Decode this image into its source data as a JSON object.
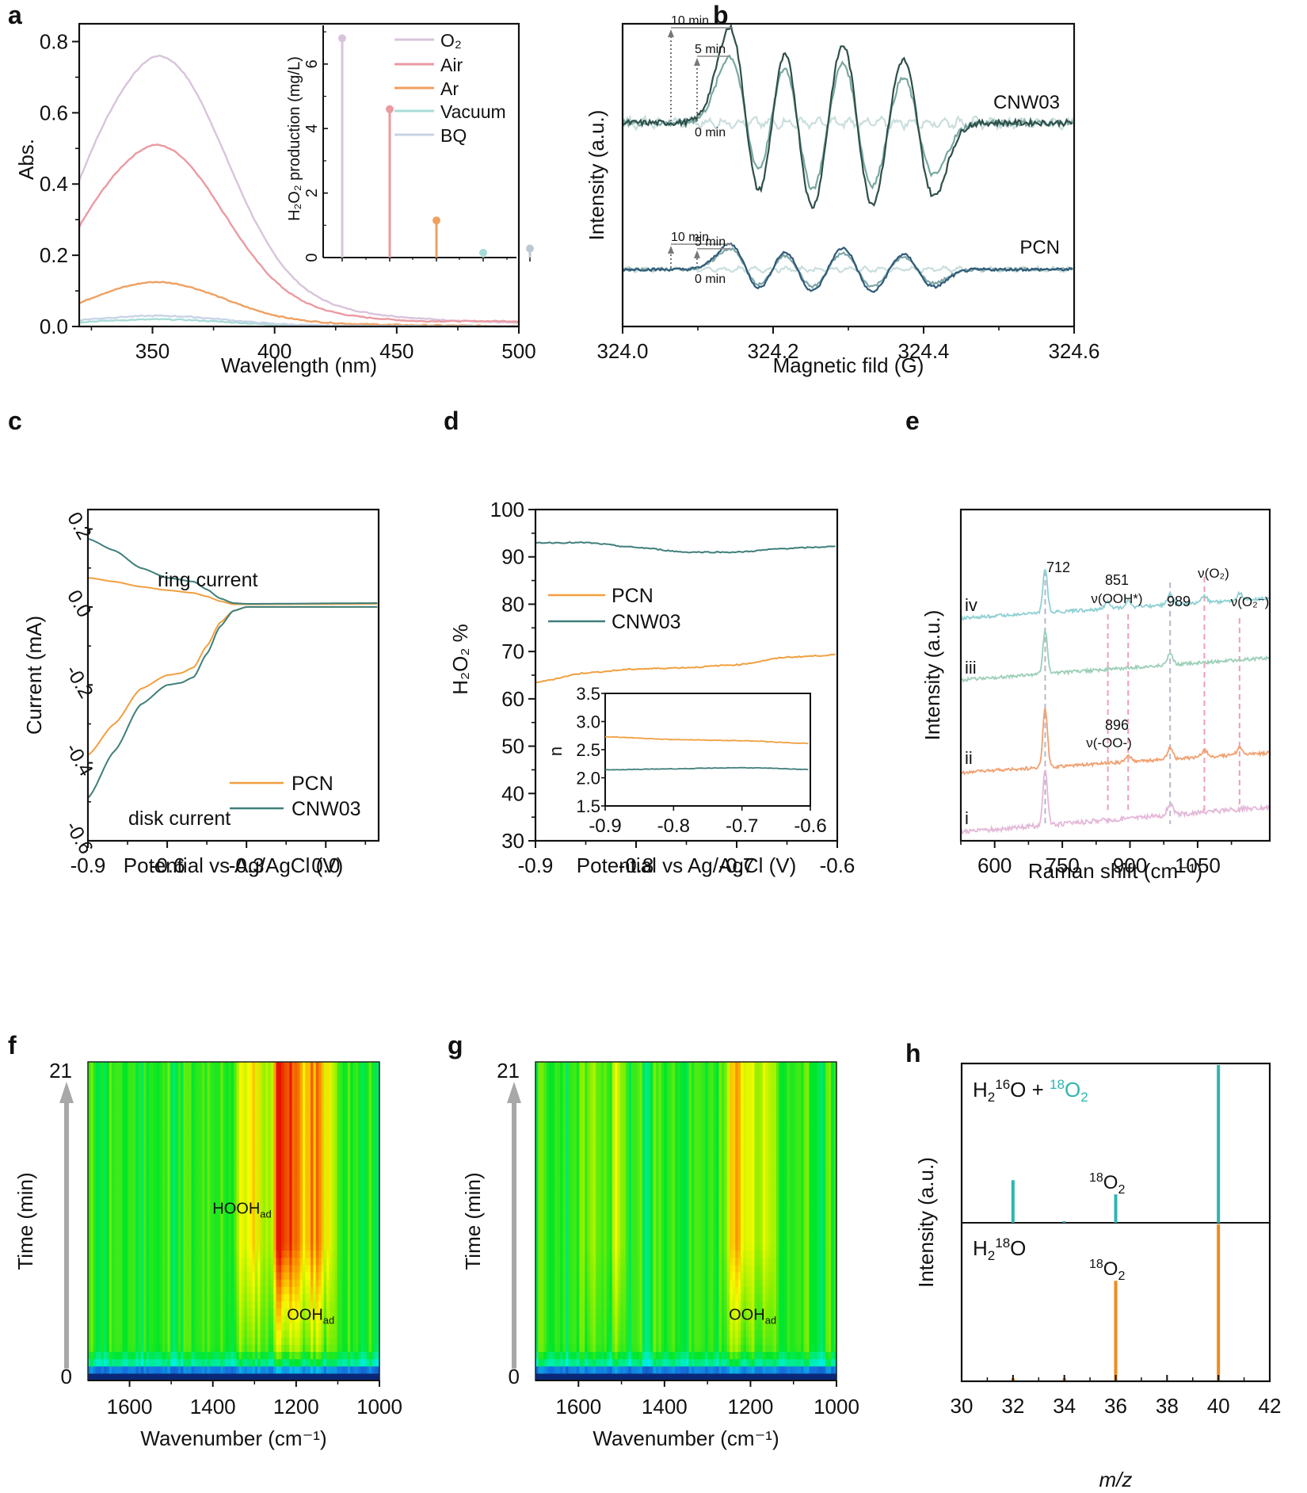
{
  "figure": {
    "panel_labels": [
      "a",
      "b",
      "c",
      "d",
      "e",
      "f",
      "g",
      "h"
    ]
  },
  "chart_data": [
    {
      "panel": "a",
      "type": "line",
      "xlabel": "Wavelength (nm)",
      "ylabel": "Abs.",
      "xlim": [
        320,
        500
      ],
      "ylim": [
        0.0,
        0.85
      ],
      "xticks": [
        "350",
        "400",
        "450",
        "500"
      ],
      "xtick_values": [
        350,
        400,
        450,
        500
      ],
      "yticks": [
        "0.0",
        "0.2",
        "0.4",
        "0.6",
        "0.8"
      ],
      "ytick_values": [
        0,
        0.2,
        0.4,
        0.6,
        0.8
      ],
      "series": [
        {
          "name": "O2",
          "color": "#d9c3dc",
          "baseline_at_320": 0.41,
          "peak_x": 352,
          "peak_y": 0.76,
          "tail_at_500": 0.01
        },
        {
          "name": "Air",
          "color": "#eb9aa2",
          "baseline_at_320": 0.28,
          "peak_x": 351,
          "peak_y": 0.51,
          "tail_at_500": 0.015
        },
        {
          "name": "Ar",
          "color": "#f0a060",
          "baseline_at_320": 0.065,
          "peak_x": 351,
          "peak_y": 0.125,
          "tail_at_500": 0.002
        },
        {
          "name": "Vacuum",
          "color": "#a8dcd8",
          "baseline_at_320": 0.012,
          "peak_x": 352,
          "peak_y": 0.02,
          "tail_at_500": 0.0
        },
        {
          "name": "BQ",
          "color": "#c7d4e6",
          "baseline_at_320": 0.018,
          "peak_x": 352,
          "peak_y": 0.03,
          "tail_at_500": 0.0
        }
      ],
      "legend": {
        "placement": "top-right",
        "entries": [
          "O₂",
          "Air",
          "Ar",
          "Vacuum",
          "BQ"
        ]
      },
      "inset": {
        "type": "stem",
        "ylabel": "H₂O₂ production (mg/L)",
        "ylim": [
          0,
          7.2
        ],
        "yticks": [
          "0",
          "2",
          "4",
          "6"
        ],
        "ytick_values": [
          0,
          2,
          4,
          6
        ],
        "categories": [
          "O2",
          "Air",
          "Ar",
          "Vacuum",
          "BQ"
        ],
        "values": [
          6.8,
          4.6,
          1.15,
          0.15,
          0.28
        ],
        "colors": [
          "#d9c3dc",
          "#eb9aa2",
          "#f0a060",
          "#a8dcd8",
          "#b9c9d6"
        ]
      }
    },
    {
      "panel": "b",
      "type": "line",
      "xlabel": "Magnetic fild (G)",
      "ylabel": "Intensity (a.u.)",
      "xlim": [
        324.0,
        324.6
      ],
      "xticks": [
        "324.0",
        "324.2",
        "324.4",
        "324.6"
      ],
      "xtick_values": [
        324.0,
        324.2,
        324.4,
        324.6
      ],
      "peak_centers": [
        324.164,
        324.233,
        324.312,
        324.392
      ],
      "groups": [
        {
          "name": "CNW03",
          "series": [
            {
              "name": "10 min",
              "color": "#2e4f4a",
              "amplitudes": [
                1.0,
                1.0,
                0.94,
                0.77
              ]
            },
            {
              "name": "5 min",
              "color": "#79a8a0",
              "amplitudes": [
                0.7,
                0.78,
                0.72,
                0.55
              ]
            },
            {
              "name": "0 min",
              "color": "#c9dedd",
              "amplitudes": [
                0,
                0,
                0,
                0
              ]
            }
          ],
          "annotations": [
            "10 min",
            "5 min",
            "0 min"
          ]
        },
        {
          "name": "PCN",
          "series": [
            {
              "name": "10 min",
              "color": "#2f5a78",
              "amplitudes": [
                0.55,
                0.53,
                0.53,
                0.38
              ]
            },
            {
              "name": "5 min",
              "color": "#7fa6a8",
              "amplitudes": [
                0.45,
                0.42,
                0.4,
                0.3
              ]
            },
            {
              "name": "0 min",
              "color": "#c9dedd",
              "amplitudes": [
                0,
                0,
                0,
                0
              ]
            }
          ],
          "annotations": [
            "10 min",
            "5 min",
            "0 min"
          ]
        }
      ]
    },
    {
      "panel": "c",
      "type": "line",
      "xlabel": "Potential vs Ag/AgCl (V)",
      "ylabel": "Current (mA)",
      "xlim": [
        -0.9,
        0.2
      ],
      "ylim": [
        -0.6,
        0.25
      ],
      "xticks": [
        "-0.9",
        "-0.6",
        "-0.3",
        "0.0"
      ],
      "xtick_values": [
        -0.9,
        -0.6,
        -0.3,
        0.0
      ],
      "yticks": [
        "-0.6",
        "-0.4",
        "-0.2",
        "0.0",
        "0.2"
      ],
      "ytick_values": [
        -0.6,
        -0.4,
        -0.2,
        0.0,
        0.2
      ],
      "annotations": [
        "ring current",
        "disk current"
      ],
      "legend": {
        "placement": "center-right",
        "entries": [
          "PCN",
          "CNW03"
        ]
      },
      "series": [
        {
          "name": "PCN ring",
          "color": "#f0a040",
          "x": [
            -0.9,
            -0.8,
            -0.7,
            -0.6,
            -0.5,
            -0.45,
            -0.4,
            -0.35,
            -0.3,
            0.2
          ],
          "y": [
            0.075,
            0.065,
            0.052,
            0.043,
            0.036,
            0.027,
            0.015,
            0.007,
            0.007,
            0.008
          ]
        },
        {
          "name": "CNW03 ring",
          "color": "#3f7f7a",
          "x": [
            -0.9,
            -0.8,
            -0.7,
            -0.6,
            -0.5,
            -0.45,
            -0.4,
            -0.35,
            -0.3,
            0.2
          ],
          "y": [
            0.175,
            0.145,
            0.1,
            0.075,
            0.065,
            0.045,
            0.022,
            0.01,
            0.008,
            0.01
          ]
        },
        {
          "name": "PCN disk",
          "color": "#f0a040",
          "x": [
            -0.9,
            -0.8,
            -0.7,
            -0.6,
            -0.55,
            -0.5,
            -0.45,
            -0.4,
            -0.35,
            -0.3,
            0.2
          ],
          "y": [
            -0.38,
            -0.3,
            -0.21,
            -0.175,
            -0.17,
            -0.155,
            -0.1,
            -0.04,
            -0.01,
            0.0,
            0.0
          ]
        },
        {
          "name": "CNW03 disk",
          "color": "#3f7f7a",
          "x": [
            -0.9,
            -0.8,
            -0.7,
            -0.6,
            -0.55,
            -0.5,
            -0.45,
            -0.4,
            -0.35,
            -0.3,
            0.2
          ],
          "y": [
            -0.49,
            -0.37,
            -0.25,
            -0.2,
            -0.195,
            -0.18,
            -0.12,
            -0.05,
            -0.01,
            0.0,
            0.0
          ]
        }
      ]
    },
    {
      "panel": "d",
      "type": "line",
      "xlabel": "Potential vs Ag/AgCl (V)",
      "ylabel": "H₂O₂ %",
      "xlim": [
        -0.9,
        -0.6
      ],
      "ylim": [
        30,
        100
      ],
      "xticks": [
        "-0.9",
        "-0.8",
        "-0.7",
        "-0.6"
      ],
      "xtick_values": [
        -0.9,
        -0.8,
        -0.7,
        -0.6
      ],
      "yticks": [
        "30",
        "40",
        "50",
        "60",
        "70",
        "80",
        "90",
        "100"
      ],
      "ytick_values": [
        30,
        40,
        50,
        60,
        70,
        80,
        90,
        100
      ],
      "legend": {
        "placement": "top-left",
        "entries": [
          "PCN",
          "CNW03"
        ]
      },
      "series": [
        {
          "name": "PCN",
          "color": "#f0a040",
          "x": [
            -0.9,
            -0.85,
            -0.8,
            -0.75,
            -0.7,
            -0.65,
            -0.6
          ],
          "y": [
            63.5,
            65.5,
            66.3,
            66.6,
            67.2,
            68.8,
            69.3
          ]
        },
        {
          "name": "CNW03",
          "color": "#3f7f7a",
          "x": [
            -0.9,
            -0.85,
            -0.8,
            -0.75,
            -0.7,
            -0.65,
            -0.6
          ],
          "y": [
            93.0,
            93.0,
            92.0,
            91.0,
            91.0,
            91.8,
            92.2
          ]
        }
      ],
      "inset": {
        "type": "line",
        "ylabel": "n",
        "xlim": [
          -0.9,
          -0.6
        ],
        "ylim": [
          1.5,
          3.5
        ],
        "xticks": [
          "-0.9",
          "-0.8",
          "-0.7",
          "-0.6"
        ],
        "xtick_values": [
          -0.9,
          -0.8,
          -0.7,
          -0.6
        ],
        "yticks": [
          "1.5",
          "2.0",
          "2.5",
          "3.0",
          "3.5"
        ],
        "ytick_values": [
          1.5,
          2.0,
          2.5,
          3.0,
          3.5
        ],
        "series": [
          {
            "name": "PCN",
            "color": "#f0a040",
            "x": [
              -0.9,
              -0.8,
              -0.7,
              -0.6
            ],
            "y": [
              2.73,
              2.68,
              2.66,
              2.61
            ]
          },
          {
            "name": "CNW03",
            "color": "#3f7f7a",
            "x": [
              -0.9,
              -0.8,
              -0.7,
              -0.6
            ],
            "y": [
              2.14,
              2.16,
              2.18,
              2.15
            ]
          }
        ]
      }
    },
    {
      "panel": "e",
      "type": "line",
      "xlabel": "Raman shift (cm⁻¹)",
      "ylabel": "Intensity (a.u.)",
      "xlim": [
        525,
        1210
      ],
      "xticks": [
        "600",
        "750",
        "900",
        "1050"
      ],
      "xtick_values": [
        600,
        750,
        900,
        1050
      ],
      "series": [
        {
          "name": "iv",
          "color": "#8fd0d4",
          "peaks": [
            712,
            851,
            896,
            989,
            1065,
            1143
          ]
        },
        {
          "name": "iii",
          "color": "#9ccfb8",
          "peaks": [
            712,
            989
          ]
        },
        {
          "name": "ii",
          "color": "#f0a070",
          "peaks": [
            712,
            896,
            989,
            1065,
            1143
          ]
        },
        {
          "name": "i",
          "color": "#e4b8d8",
          "peaks": [
            712,
            989
          ]
        }
      ],
      "reference_lines": [
        {
          "x": 712,
          "color": "#b8b8c8"
        },
        {
          "x": 851,
          "color": "#f0a0b0"
        },
        {
          "x": 896,
          "color": "#f0a0b0"
        },
        {
          "x": 989,
          "color": "#b8b8c8"
        },
        {
          "x": 1065,
          "color": "#f0a0b0"
        },
        {
          "x": 1143,
          "color": "#f0a0b0"
        }
      ],
      "annotations": [
        "712",
        "851",
        "ν(OOH*)",
        "989",
        "ν(O₂)",
        "ν(O₂⁻)",
        "896",
        "ν(-OO-)"
      ]
    },
    {
      "panel": "f",
      "type": "heatmap",
      "xlabel": "Wavenumber (cm⁻¹)",
      "ylabel": "Time (min)",
      "xlim": [
        1700,
        1000
      ],
      "ylim": [
        0,
        21
      ],
      "xticks": [
        "1600",
        "1400",
        "1200",
        "1000"
      ],
      "xtick_values": [
        1600,
        1400,
        1200,
        1000
      ],
      "yticks": [
        "0",
        "21"
      ],
      "ytick_values": [
        0,
        21
      ],
      "bands": [
        {
          "center": 1232,
          "width": 22,
          "max": 1.0
        },
        {
          "center": 1170,
          "width": 28,
          "max": 0.65
        },
        {
          "center": 1320,
          "width": 20,
          "max": 0.42
        },
        {
          "center": 1130,
          "width": 16,
          "max": 0.35
        },
        {
          "center": 1295,
          "width": 12,
          "max": 0.3
        }
      ],
      "annotations": [
        {
          "text": "HOOH",
          "sub": "ad",
          "x": 1330,
          "y": 11
        },
        {
          "text": "OOH",
          "sub": "ad",
          "x": 1165,
          "y": 4
        }
      ]
    },
    {
      "panel": "g",
      "type": "heatmap",
      "xlabel": "Wavenumber (cm⁻¹)",
      "ylabel": "Time (min)",
      "xlim": [
        1700,
        1000
      ],
      "ylim": [
        0,
        21
      ],
      "xticks": [
        "1600",
        "1400",
        "1200",
        "1000"
      ],
      "xtick_values": [
        1600,
        1400,
        1200,
        1000
      ],
      "yticks": [
        "0",
        "21"
      ],
      "ytick_values": [
        0,
        21
      ],
      "bands": [
        {
          "center": 1225,
          "width": 22,
          "max": 0.7
        },
        {
          "center": 1165,
          "width": 16,
          "max": 0.45
        },
        {
          "center": 1510,
          "width": 14,
          "max": 0.35
        },
        {
          "center": 1570,
          "width": 18,
          "max": 0.18
        }
      ],
      "annotations": [
        {
          "text": "OOH",
          "sub": "ad",
          "x": 1195,
          "y": 4
        }
      ]
    },
    {
      "panel": "h",
      "type": "bar",
      "xlabel": "m/z",
      "ylabel": "Intensity (a.u.)",
      "xlim": [
        30,
        42
      ],
      "xticks": [
        "30",
        "32",
        "34",
        "36",
        "38",
        "40",
        "42"
      ],
      "xtick_values": [
        30,
        32,
        34,
        36,
        38,
        40,
        42
      ],
      "series": [
        {
          "name": "H₂¹⁶O + ¹⁸O₂",
          "color": "#2fb5b0",
          "x": [
            32,
            34,
            36,
            40
          ],
          "values": [
            0.27,
            0.01,
            0.18,
            1.0
          ],
          "peak_label": "¹⁸O₂"
        },
        {
          "name": "H₂¹⁸O",
          "color": "#f08a1e",
          "x": [
            32,
            34,
            36,
            40
          ],
          "values": [
            0.02,
            0.02,
            0.64,
            1.0
          ],
          "peak_label": "¹⁸O₂"
        }
      ]
    }
  ]
}
